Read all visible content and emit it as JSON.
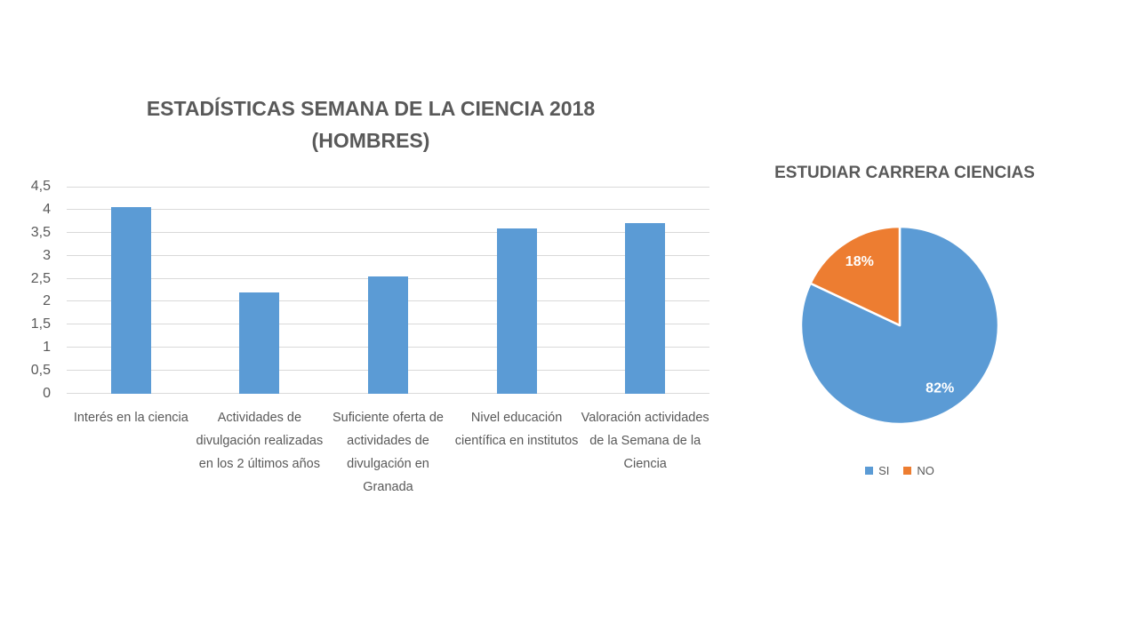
{
  "colors": {
    "text": "#595959",
    "grid": "#D9D9D9",
    "background": "#FFFFFF",
    "blue": "#5B9BD5",
    "orange": "#ED7D31"
  },
  "chart_data": [
    {
      "type": "bar",
      "title": "ESTADÍSTICAS SEMANA DE LA CIENCIA 2018",
      "subtitle": "(HOMBRES)",
      "categories": [
        "Interés en la ciencia",
        "Actividades de divulgación realizadas en los 2 últimos años",
        "Suficiente oferta de actividades de divulgación en Granada",
        "Nivel educación científica en institutos",
        "Valoración actividades de la Semana de la Ciencia"
      ],
      "values": [
        4.05,
        2.2,
        2.55,
        3.6,
        3.7
      ],
      "xlabel": "",
      "ylabel": "",
      "ylim": [
        0,
        4.5
      ],
      "ytick_step": 0.5,
      "ytick_labels": [
        "0",
        "0,5",
        "1",
        "1,5",
        "2",
        "2,5",
        "3",
        "3,5",
        "4",
        "4,5"
      ],
      "grid": true,
      "bar_color": "#5B9BD5",
      "legend_position": "none"
    },
    {
      "type": "pie",
      "title": "ESTUDIAR CARRERA CIENCIAS",
      "slices": [
        {
          "label": "SI",
          "value": 82,
          "pct_label": "82%",
          "color": "#5B9BD5"
        },
        {
          "label": "NO",
          "value": 18,
          "pct_label": "18%",
          "color": "#ED7D31"
        }
      ],
      "start_angle_deg": 0,
      "direction": "clockwise",
      "slice_border_color": "#FFFFFF",
      "pct_label_color": "#FFFFFF",
      "legend_position": "bottom"
    }
  ]
}
